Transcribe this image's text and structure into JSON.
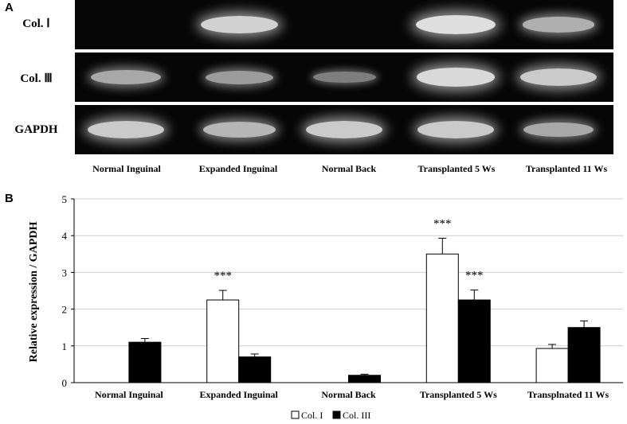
{
  "panel_a": {
    "letter": "A",
    "rows": [
      {
        "label": "Col. Ⅰ",
        "intensity": [
          0.0,
          0.9,
          0.0,
          1.0,
          0.65
        ]
      },
      {
        "label": "Col. Ⅲ",
        "intensity": [
          0.6,
          0.5,
          0.3,
          0.95,
          0.85
        ]
      },
      {
        "label": "GAPDH",
        "intensity": [
          0.85,
          0.7,
          0.85,
          0.85,
          0.6
        ]
      }
    ],
    "lanes": [
      "Normal Inguinal",
      "Expanded Inguinal",
      "Normal Back",
      "Transplanted  5 Ws",
      "Transplanted  11 Ws"
    ]
  },
  "panel_b": {
    "letter": "B"
  },
  "chart_data": {
    "type": "bar",
    "ylabel": "Relative expression / GAPDH",
    "xlabel": "",
    "ylim": [
      0,
      5
    ],
    "yticks": [
      "0",
      "1",
      "2",
      "3",
      "4",
      "5"
    ],
    "categories": [
      "Normal Inguinal",
      "Expanded Inguinal",
      "Normal Back",
      "Transplanted 5 Ws",
      "Transplnated 11 Ws"
    ],
    "series": [
      {
        "name": "Col. I",
        "color": "#ffffff",
        "values": [
          0,
          2.25,
          0,
          3.5,
          0.93
        ],
        "errors": [
          0,
          0.26,
          0,
          0.43,
          0.11
        ]
      },
      {
        "name": "Col. III",
        "color": "#000000",
        "values": [
          1.1,
          0.7,
          0.2,
          2.25,
          1.5
        ],
        "errors": [
          0.1,
          0.08,
          0.03,
          0.27,
          0.18
        ]
      }
    ],
    "annotations": [
      {
        "text": "***",
        "category": 1,
        "series": 0
      },
      {
        "text": "***",
        "category": 3,
        "series": 0
      },
      {
        "text": "***",
        "category": 3,
        "series": 1
      }
    ],
    "legend": {
      "position": "bottom-center",
      "labels": [
        "Col. I",
        "Col. III"
      ]
    }
  }
}
